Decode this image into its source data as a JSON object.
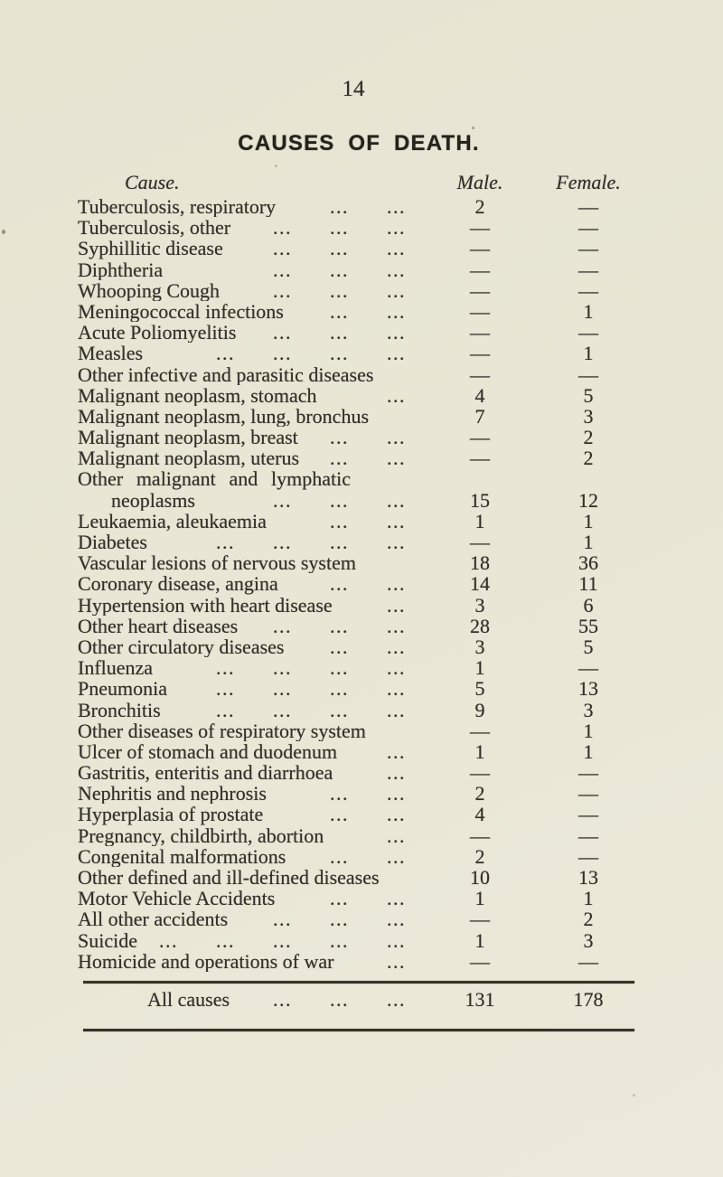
{
  "theme": {
    "paper": "#e9e6d5",
    "ink": "#33312a"
  },
  "page": {
    "number": "14",
    "title": "CAUSES OF DEATH."
  },
  "table": {
    "headers": {
      "cause": "Cause.",
      "male": "Male.",
      "female": "Female."
    },
    "dash": "—",
    "rows": [
      {
        "label": "Tuberculosis, respiratory",
        "dots": 2,
        "male": "2",
        "female": "—"
      },
      {
        "label": "Tuberculosis, other",
        "dots": 3,
        "male": "—",
        "female": "—"
      },
      {
        "label": "Syphillitic disease",
        "dots": 3,
        "male": "—",
        "female": "—"
      },
      {
        "label": "Diphtheria",
        "dots": 3,
        "male": "—",
        "female": "—"
      },
      {
        "label": "Whooping Cough",
        "dots": 3,
        "male": "—",
        "female": "—"
      },
      {
        "label": "Meningococcal infections",
        "dots": 2,
        "male": "—",
        "female": "1"
      },
      {
        "label": "Acute Poliomyelitis",
        "dots": 3,
        "male": "—",
        "female": "—"
      },
      {
        "label": "Measles",
        "dots": 4,
        "male": "—",
        "female": "1"
      },
      {
        "label": "Other infective and parasitic diseases",
        "dots": 0,
        "male": "—",
        "female": "—"
      },
      {
        "label": "Malignant neoplasm, stomach",
        "dots": 1,
        "male": "4",
        "female": "5"
      },
      {
        "label": "Malignant neoplasm, lung, bronchus",
        "dots": 0,
        "male": "7",
        "female": "3"
      },
      {
        "label": "Malignant neoplasm, breast",
        "dots": 2,
        "male": "—",
        "female": "2"
      },
      {
        "label": "Malignant neoplasm, uterus",
        "dots": 2,
        "male": "—",
        "female": "2"
      },
      {
        "label": "Other malignant and lymphatic",
        "dots": 0,
        "male": "",
        "female": "",
        "justify": true
      },
      {
        "label": "neoplasms",
        "dots": 3,
        "male": "15",
        "female": "12",
        "indent": true
      },
      {
        "label": "Leukaemia, aleukaemia",
        "dots": 2,
        "male": "1",
        "female": "1"
      },
      {
        "label": "Diabetes",
        "dots": 4,
        "male": "—",
        "female": "1"
      },
      {
        "label": "Vascular lesions of nervous system",
        "dots": 0,
        "male": "18",
        "female": "36"
      },
      {
        "label": "Coronary disease, angina",
        "dots": 2,
        "male": "14",
        "female": "11"
      },
      {
        "label": "Hypertension with heart disease",
        "dots": 1,
        "male": "3",
        "female": "6"
      },
      {
        "label": "Other heart diseases",
        "dots": 3,
        "male": "28",
        "female": "55"
      },
      {
        "label": "Other circulatory diseases",
        "dots": 2,
        "male": "3",
        "female": "5"
      },
      {
        "label": "Influenza",
        "dots": 4,
        "male": "1",
        "female": "—"
      },
      {
        "label": "Pneumonia",
        "dots": 4,
        "male": "5",
        "female": "13"
      },
      {
        "label": "Bronchitis",
        "dots": 4,
        "male": "9",
        "female": "3"
      },
      {
        "label": "Other diseases of respiratory system",
        "dots": 0,
        "male": "—",
        "female": "1"
      },
      {
        "label": "Ulcer of stomach and duodenum",
        "dots": 1,
        "male": "1",
        "female": "1"
      },
      {
        "label": "Gastritis, enteritis and diarrhoea",
        "dots": 1,
        "male": "—",
        "female": "—"
      },
      {
        "label": "Nephritis and nephrosis",
        "dots": 2,
        "male": "2",
        "female": "—"
      },
      {
        "label": "Hyperplasia of prostate",
        "dots": 2,
        "male": "4",
        "female": "—"
      },
      {
        "label": "Pregnancy, childbirth, abortion",
        "dots": 1,
        "male": "—",
        "female": "—"
      },
      {
        "label": "Congenital malformations",
        "dots": 2,
        "male": "2",
        "female": "—"
      },
      {
        "label": "Other defined and ill-defined diseases",
        "dots": 0,
        "male": "10",
        "female": "13"
      },
      {
        "label": "Motor Vehicle Accidents",
        "dots": 2,
        "male": "1",
        "female": "1"
      },
      {
        "label": "All other accidents",
        "dots": 3,
        "male": "—",
        "female": "2"
      },
      {
        "label": "Suicide",
        "dots": 5,
        "male": "1",
        "female": "3"
      },
      {
        "label": "Homicide and operations of war",
        "dots": 1,
        "male": "—",
        "female": "—"
      }
    ],
    "total": {
      "label": "All causes",
      "dots": 3,
      "male": "131",
      "female": "178"
    }
  }
}
